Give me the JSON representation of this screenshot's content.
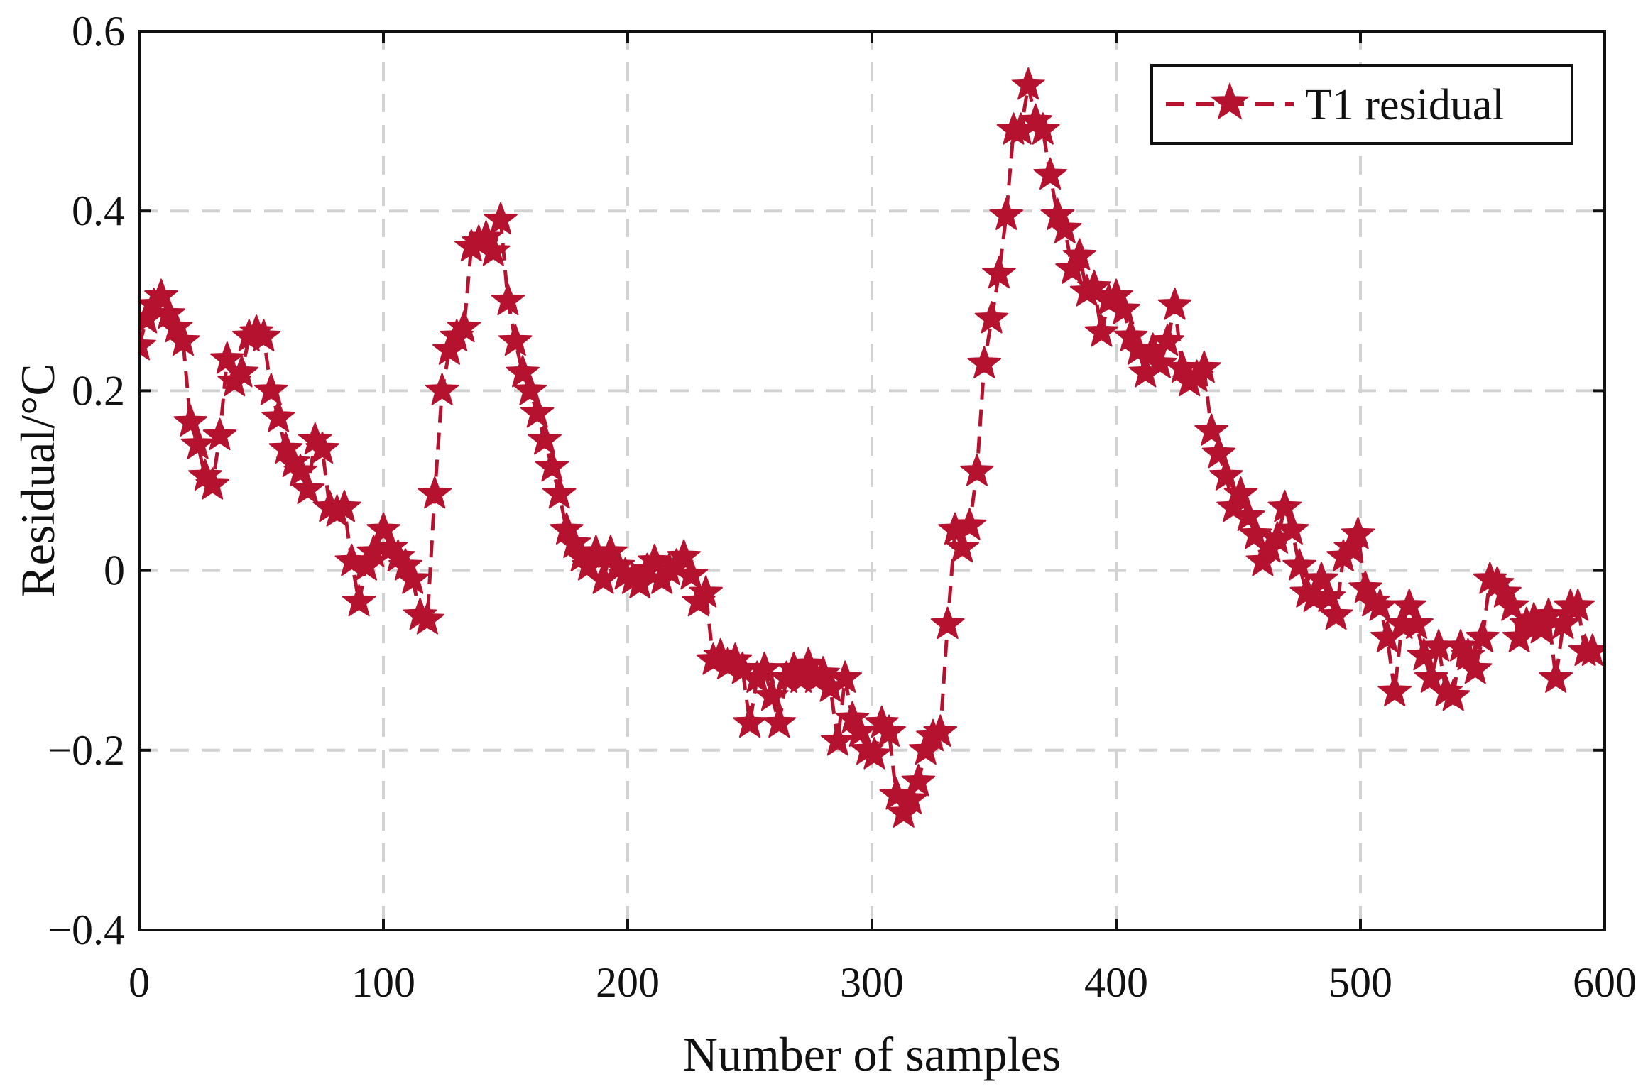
{
  "chart_data": {
    "type": "line",
    "title": "",
    "xlabel": "Number of samples",
    "ylabel": "Residual/°C",
    "xlim": [
      0,
      600
    ],
    "ylim": [
      -0.4,
      0.6
    ],
    "xticks": [
      0,
      100,
      200,
      300,
      400,
      500,
      600
    ],
    "yticks": [
      -0.4,
      -0.2,
      0,
      0.2,
      0.4,
      0.6
    ],
    "xtick_labels": [
      "0",
      "100",
      "200",
      "300",
      "400",
      "500",
      "600"
    ],
    "ytick_labels": [
      "−0.4",
      "−0.2",
      "0",
      "0.2",
      "0.4",
      "0.6"
    ],
    "grid": true,
    "legend_position": "top-right",
    "series": [
      {
        "name": "T1 residual",
        "color": "#b5122f",
        "line_style": "dashed",
        "marker": "star",
        "points": [
          [
            0,
            0.25
          ],
          [
            3,
            0.28
          ],
          [
            6,
            0.295
          ],
          [
            9,
            0.305
          ],
          [
            12,
            0.285
          ],
          [
            15,
            0.27
          ],
          [
            18,
            0.255
          ],
          [
            21,
            0.165
          ],
          [
            24,
            0.14
          ],
          [
            27,
            0.105
          ],
          [
            30,
            0.095
          ],
          [
            33,
            0.15
          ],
          [
            36,
            0.235
          ],
          [
            39,
            0.21
          ],
          [
            42,
            0.22
          ],
          [
            45,
            0.26
          ],
          [
            48,
            0.265
          ],
          [
            51,
            0.26
          ],
          [
            54,
            0.2
          ],
          [
            57,
            0.17
          ],
          [
            60,
            0.135
          ],
          [
            63,
            0.12
          ],
          [
            66,
            0.11
          ],
          [
            69,
            0.09
          ],
          [
            72,
            0.145
          ],
          [
            75,
            0.135
          ],
          [
            78,
            0.07
          ],
          [
            81,
            0.065
          ],
          [
            84,
            0.07
          ],
          [
            87,
            0.01
          ],
          [
            90,
            -0.035
          ],
          [
            93,
            0.005
          ],
          [
            96,
            0.02
          ],
          [
            100,
            0.045
          ],
          [
            103,
            0.025
          ],
          [
            106,
            0.015
          ],
          [
            109,
            0.005
          ],
          [
            112,
            -0.01
          ],
          [
            115,
            -0.05
          ],
          [
            118,
            -0.055
          ],
          [
            121,
            0.085
          ],
          [
            124,
            0.2
          ],
          [
            127,
            0.245
          ],
          [
            130,
            0.26
          ],
          [
            133,
            0.27
          ],
          [
            136,
            0.36
          ],
          [
            139,
            0.365
          ],
          [
            142,
            0.37
          ],
          [
            145,
            0.355
          ],
          [
            148,
            0.39
          ],
          [
            151,
            0.3
          ],
          [
            154,
            0.255
          ],
          [
            157,
            0.22
          ],
          [
            160,
            0.2
          ],
          [
            163,
            0.175
          ],
          [
            166,
            0.145
          ],
          [
            169,
            0.115
          ],
          [
            172,
            0.085
          ],
          [
            175,
            0.045
          ],
          [
            178,
            0.03
          ],
          [
            181,
            0.015
          ],
          [
            184,
            0.005
          ],
          [
            187,
            0.02
          ],
          [
            190,
            -0.01
          ],
          [
            193,
            0.02
          ],
          [
            196,
            0.005
          ],
          [
            199,
            -0.005
          ],
          [
            202,
            -0.01
          ],
          [
            205,
            -0.015
          ],
          [
            208,
            0.0
          ],
          [
            211,
            0.01
          ],
          [
            214,
            -0.01
          ],
          [
            217,
            0.0
          ],
          [
            220,
            0.005
          ],
          [
            223,
            0.015
          ],
          [
            226,
            -0.005
          ],
          [
            229,
            -0.035
          ],
          [
            232,
            -0.025
          ],
          [
            235,
            -0.1
          ],
          [
            238,
            -0.095
          ],
          [
            241,
            -0.105
          ],
          [
            244,
            -0.1
          ],
          [
            247,
            -0.11
          ],
          [
            250,
            -0.17
          ],
          [
            253,
            -0.12
          ],
          [
            256,
            -0.11
          ],
          [
            259,
            -0.14
          ],
          [
            262,
            -0.17
          ],
          [
            265,
            -0.12
          ],
          [
            268,
            -0.11
          ],
          [
            271,
            -0.12
          ],
          [
            274,
            -0.105
          ],
          [
            277,
            -0.12
          ],
          [
            280,
            -0.115
          ],
          [
            283,
            -0.13
          ],
          [
            286,
            -0.19
          ],
          [
            289,
            -0.12
          ],
          [
            292,
            -0.165
          ],
          [
            295,
            -0.18
          ],
          [
            298,
            -0.2
          ],
          [
            301,
            -0.205
          ],
          [
            304,
            -0.17
          ],
          [
            307,
            -0.18
          ],
          [
            310,
            -0.25
          ],
          [
            313,
            -0.27
          ],
          [
            316,
            -0.255
          ],
          [
            319,
            -0.235
          ],
          [
            322,
            -0.2
          ],
          [
            325,
            -0.185
          ],
          [
            328,
            -0.18
          ],
          [
            331,
            -0.06
          ],
          [
            334,
            0.045
          ],
          [
            337,
            0.025
          ],
          [
            340,
            0.05
          ],
          [
            343,
            0.11
          ],
          [
            346,
            0.23
          ],
          [
            349,
            0.28
          ],
          [
            352,
            0.33
          ],
          [
            355,
            0.395
          ],
          [
            358,
            0.49
          ],
          [
            361,
            0.49
          ],
          [
            364,
            0.54
          ],
          [
            367,
            0.5
          ],
          [
            370,
            0.49
          ],
          [
            373,
            0.44
          ],
          [
            376,
            0.395
          ],
          [
            379,
            0.38
          ],
          [
            382,
            0.335
          ],
          [
            385,
            0.35
          ],
          [
            388,
            0.31
          ],
          [
            391,
            0.315
          ],
          [
            394,
            0.265
          ],
          [
            397,
            0.3
          ],
          [
            400,
            0.305
          ],
          [
            403,
            0.29
          ],
          [
            406,
            0.26
          ],
          [
            409,
            0.245
          ],
          [
            412,
            0.22
          ],
          [
            415,
            0.245
          ],
          [
            418,
            0.23
          ],
          [
            421,
            0.255
          ],
          [
            424,
            0.295
          ],
          [
            427,
            0.225
          ],
          [
            430,
            0.21
          ],
          [
            433,
            0.215
          ],
          [
            436,
            0.225
          ],
          [
            439,
            0.155
          ],
          [
            442,
            0.13
          ],
          [
            445,
            0.105
          ],
          [
            448,
            0.07
          ],
          [
            451,
            0.085
          ],
          [
            454,
            0.06
          ],
          [
            457,
            0.04
          ],
          [
            460,
            0.01
          ],
          [
            463,
            0.025
          ],
          [
            466,
            0.035
          ],
          [
            469,
            0.07
          ],
          [
            472,
            0.045
          ],
          [
            475,
            0.005
          ],
          [
            478,
            -0.025
          ],
          [
            481,
            -0.03
          ],
          [
            484,
            -0.01
          ],
          [
            487,
            -0.03
          ],
          [
            490,
            -0.05
          ],
          [
            493,
            0.015
          ],
          [
            496,
            0.025
          ],
          [
            499,
            0.04
          ],
          [
            502,
            -0.02
          ],
          [
            505,
            -0.035
          ],
          [
            508,
            -0.04
          ],
          [
            511,
            -0.075
          ],
          [
            514,
            -0.135
          ],
          [
            517,
            -0.06
          ],
          [
            520,
            -0.04
          ],
          [
            523,
            -0.06
          ],
          [
            526,
            -0.095
          ],
          [
            529,
            -0.12
          ],
          [
            532,
            -0.085
          ],
          [
            535,
            -0.135
          ],
          [
            538,
            -0.14
          ],
          [
            541,
            -0.085
          ],
          [
            544,
            -0.095
          ],
          [
            547,
            -0.11
          ],
          [
            550,
            -0.075
          ],
          [
            553,
            -0.01
          ],
          [
            556,
            -0.015
          ],
          [
            559,
            -0.025
          ],
          [
            562,
            -0.04
          ],
          [
            565,
            -0.075
          ],
          [
            568,
            -0.06
          ],
          [
            571,
            -0.055
          ],
          [
            574,
            -0.065
          ],
          [
            577,
            -0.05
          ],
          [
            580,
            -0.12
          ],
          [
            583,
            -0.06
          ],
          [
            586,
            -0.04
          ],
          [
            589,
            -0.04
          ],
          [
            592,
            -0.09
          ],
          [
            595,
            -0.09
          ]
        ]
      }
    ]
  }
}
